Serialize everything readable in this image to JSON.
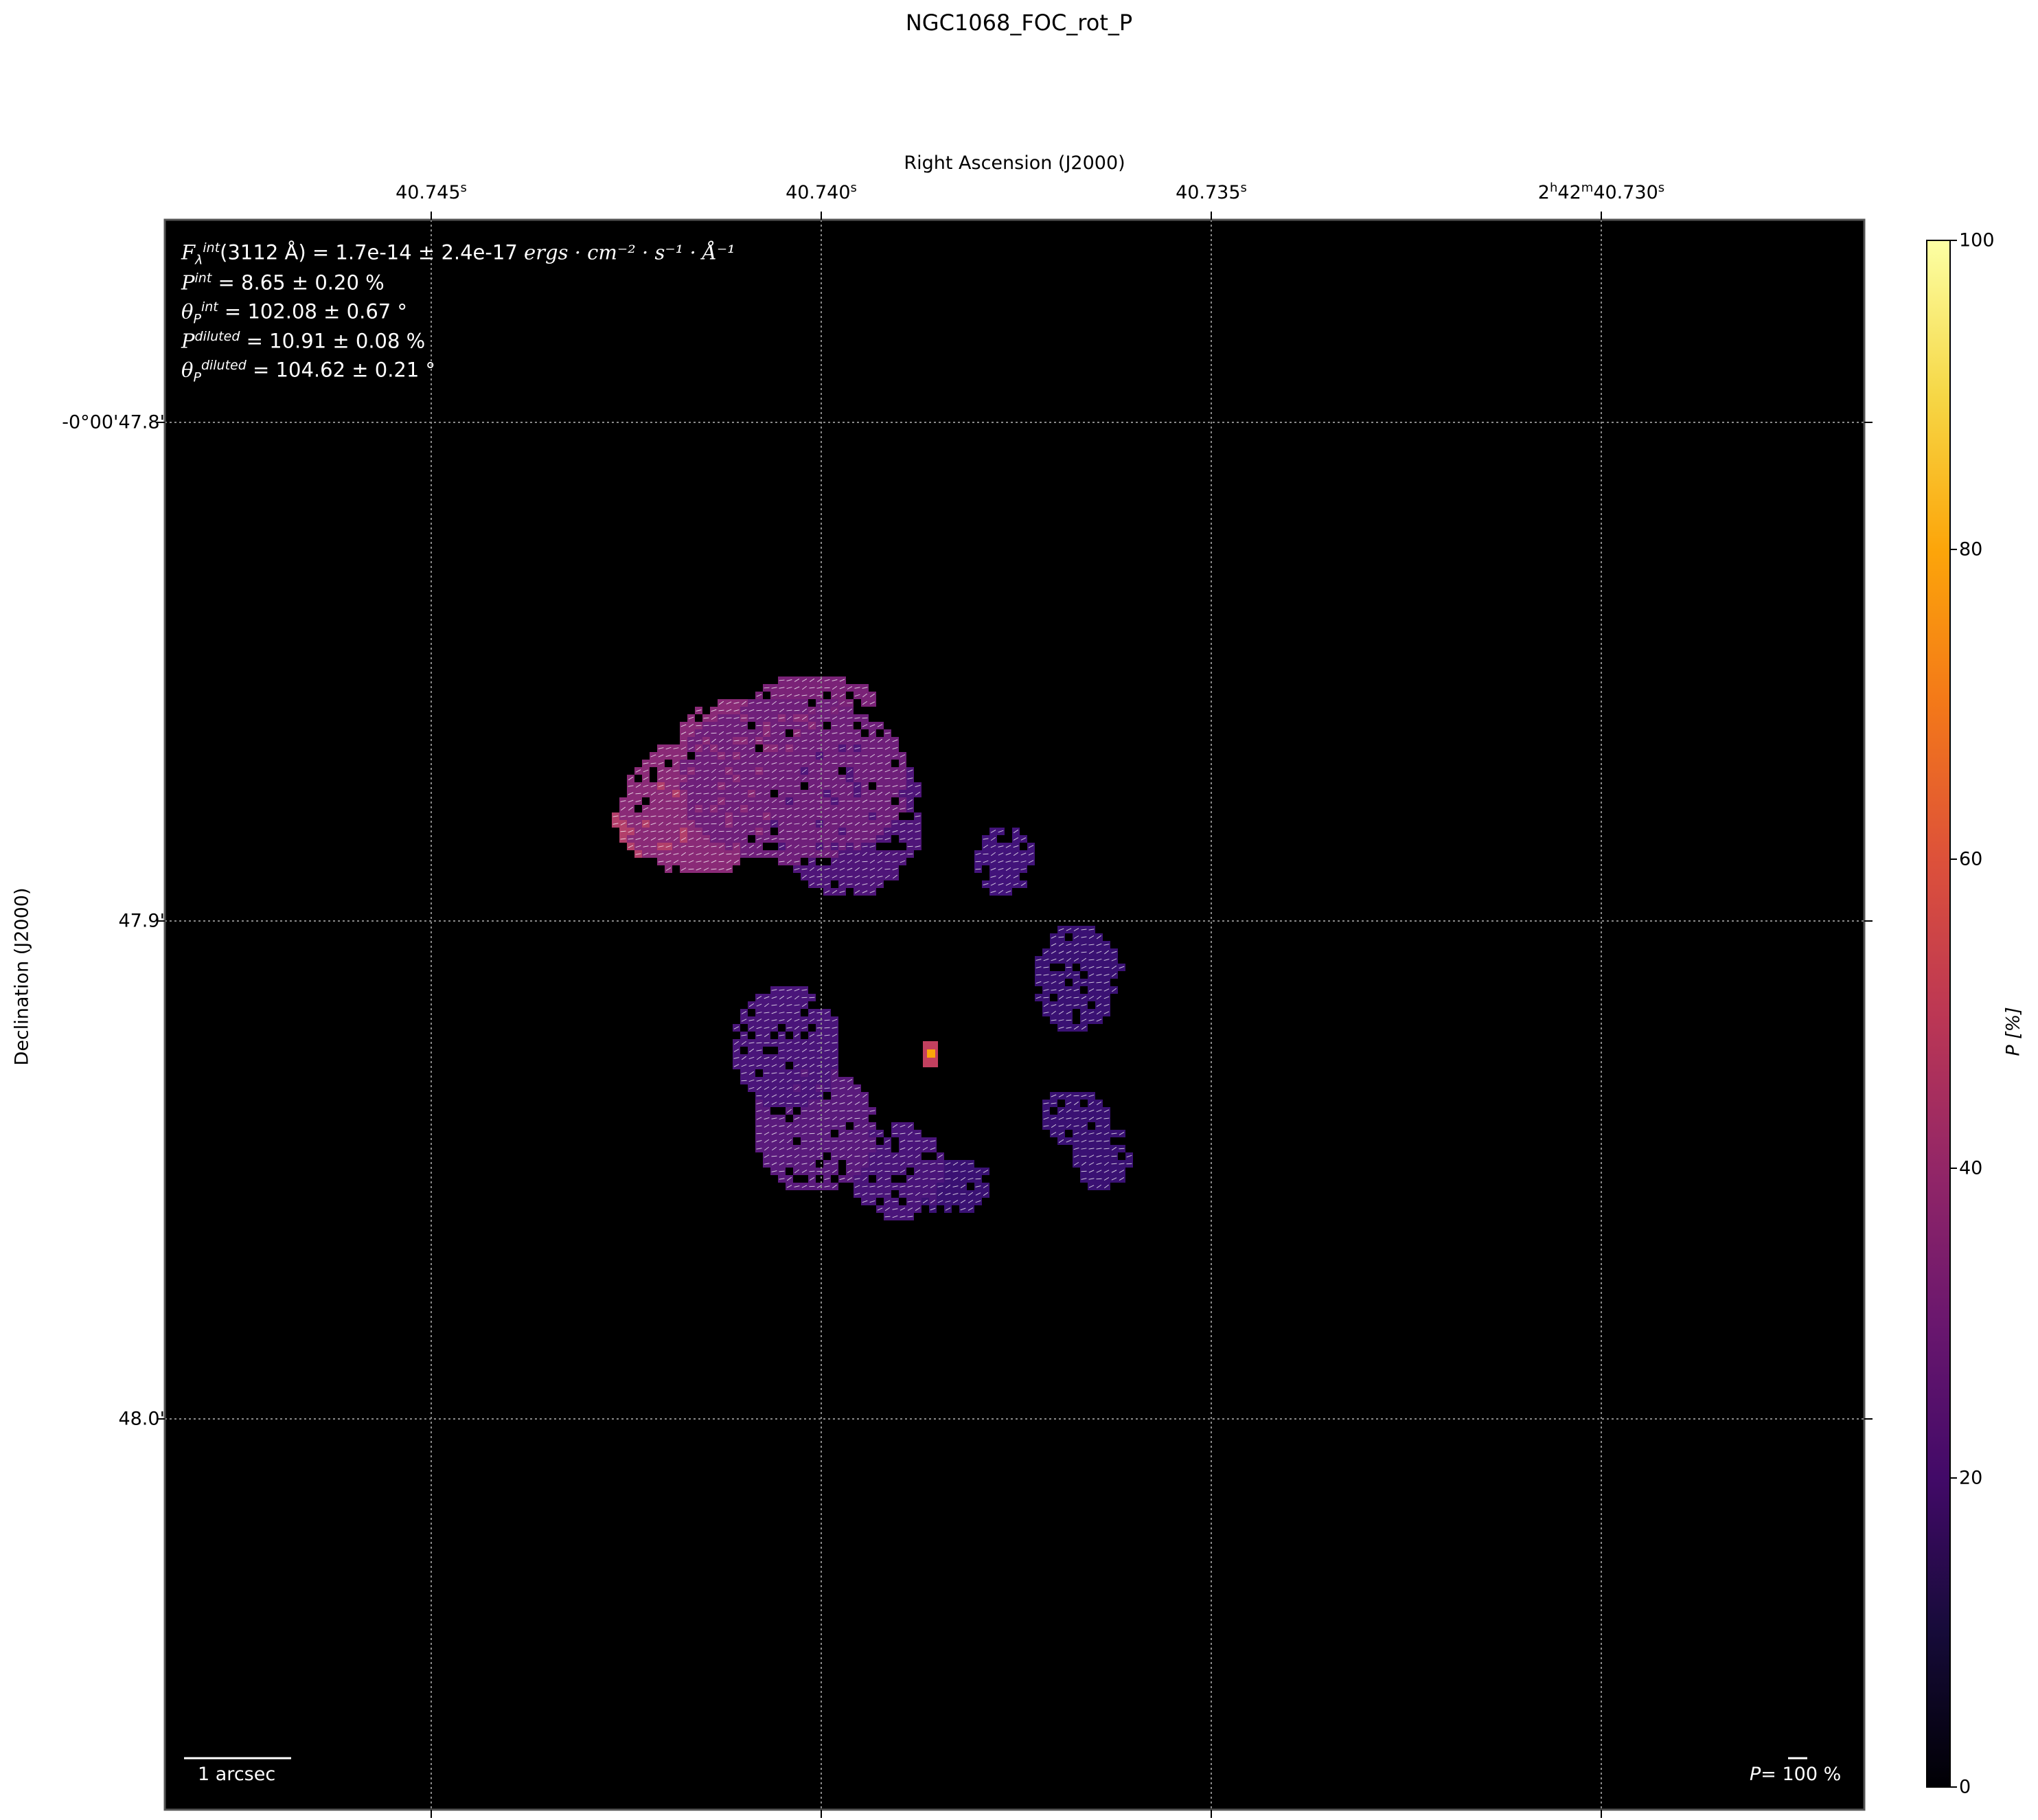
{
  "chart_data": {
    "type": "heatmap",
    "title": "NGC1068_FOC_rot_P",
    "xlabel": "Right Ascension (J2000)",
    "ylabel": "Declination (J2000)",
    "ra_ticks": [
      "40.745",
      "40.740",
      "40.735",
      "2h42m40.730"
    ],
    "ra_tick_labels": [
      {
        "base": "40.745",
        "unit": "s"
      },
      {
        "base": "40.740",
        "unit": "s"
      },
      {
        "base": "40.735",
        "unit": "s"
      },
      {
        "hours": "2",
        "minutes": "42",
        "base": "40.730",
        "unit": "s"
      }
    ],
    "dec_ticks": [
      "-0°00'47.8\"",
      "47.9\"",
      "48.0\""
    ],
    "grid": true,
    "colormap": "inferno",
    "colorbar": {
      "label": "P [%]",
      "ticks": [
        0,
        20,
        40,
        60,
        80,
        100
      ],
      "range": [
        0,
        100
      ]
    },
    "annotations": {
      "flux": "(3112 Å) = 1.7e-14 ± 2.4e-17",
      "flux_units": "ergs · cm⁻² · s⁻¹ · Å⁻¹",
      "p_int": " = 8.65 ± 0.20 %",
      "theta_int": " = 102.08 ± 0.67 °",
      "p_diluted": " = 10.91 ± 0.08 %",
      "theta_diluted": " = 104.62 ± 0.21 °"
    },
    "scale_bar": "1 arcsec",
    "vector_scale": "100 %",
    "vector_scale_prefix": "P="
  }
}
